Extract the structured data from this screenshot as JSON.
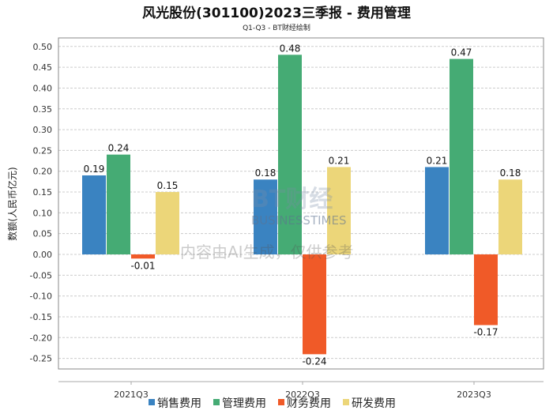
{
  "chart_data": {
    "type": "bar",
    "title": "风光股份(301100)2023三季报 - 费用管理",
    "subtitle": "Q1-Q3 - BT财经绘制",
    "xlabel": "",
    "ylabel": "数额(人民币亿元)",
    "categories": [
      "2021Q3",
      "2022Q3",
      "2023Q3"
    ],
    "series": [
      {
        "name": "销售费用",
        "color": "#3a83c1",
        "values": [
          0.19,
          0.18,
          0.21
        ]
      },
      {
        "name": "管理费用",
        "color": "#45ab74",
        "values": [
          0.24,
          0.48,
          0.47
        ]
      },
      {
        "name": "财务费用",
        "color": "#f05a28",
        "values": [
          -0.01,
          -0.24,
          -0.17
        ]
      },
      {
        "name": "研发费用",
        "color": "#ecd679",
        "values": [
          0.15,
          0.21,
          0.18
        ]
      }
    ],
    "ylim": [
      -0.28,
      0.52
    ],
    "yticks": [
      "0.50",
      "0.45",
      "0.40",
      "0.35",
      "0.30",
      "0.25",
      "0.20",
      "0.15",
      "0.10",
      "0.05",
      "0.00",
      "-0.05",
      "-0.10",
      "-0.15",
      "-0.20",
      "-0.25"
    ],
    "grid": true,
    "legend": "bottom"
  },
  "watermark": {
    "brand": "BT财经",
    "brand_en": "BUSINESSTIMES",
    "notice": "内容由AI生成，仅供参考"
  }
}
